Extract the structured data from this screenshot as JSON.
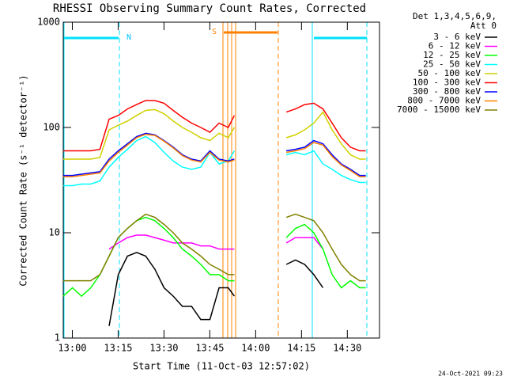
{
  "chart_data": {
    "type": "line",
    "title": "RHESSI Observing Summary Count Rates, Corrected",
    "x_label": "Start Time (11-Oct-03 12:57:02)",
    "y_label": "Corrected Count Rate (s⁻¹ detector⁻¹)",
    "legend_title": [
      "Det 1,3,4,5,6,9,",
      "Att 0"
    ],
    "footer": "24-Oct-2021 09:23",
    "annotations": [
      {
        "text": "N"
      },
      {
        "text": "S"
      }
    ],
    "log_y": true,
    "xlim": [
      0,
      103.5
    ],
    "xticks": [
      {
        "value": 2.97,
        "label": "13:00"
      },
      {
        "value": 17.97,
        "label": "13:15"
      },
      {
        "value": 32.97,
        "label": "13:30"
      },
      {
        "value": 47.97,
        "label": "13:45"
      },
      {
        "value": 62.97,
        "label": "14:00"
      },
      {
        "value": 77.97,
        "label": "14:15"
      },
      {
        "value": 92.97,
        "label": "14:30"
      }
    ],
    "ylim": [
      1,
      1000
    ],
    "yticks": [
      1,
      10,
      100,
      1000
    ],
    "x": [
      0,
      3,
      6,
      9,
      12,
      15,
      18,
      21,
      24,
      27,
      30,
      33,
      36,
      39,
      42,
      45,
      48,
      51,
      54,
      56,
      65,
      73,
      76,
      79,
      82,
      85,
      88,
      91,
      94,
      97,
      99
    ],
    "series": [
      {
        "name": "3 - 6 keV",
        "color": "#000000",
        "values": [
          null,
          null,
          null,
          null,
          null,
          1.3,
          4,
          6,
          6.5,
          6,
          4.5,
          3,
          2.5,
          2,
          2,
          1.5,
          1.5,
          3,
          3,
          2.5,
          null,
          5,
          5.5,
          5,
          4,
          3,
          null,
          null,
          null,
          null,
          null
        ]
      },
      {
        "name": "6 - 12 keV",
        "color": "#ff00ff",
        "values": [
          null,
          null,
          null,
          null,
          null,
          7,
          8,
          9,
          9.5,
          9.5,
          9,
          8.5,
          8,
          8,
          8,
          7.5,
          7.5,
          7,
          7,
          7,
          null,
          8,
          9,
          9,
          9,
          7,
          null,
          null,
          null,
          null,
          null
        ]
      },
      {
        "name": "12 - 25 keV",
        "color": "#00ff00",
        "values": [
          2.5,
          3,
          2.5,
          3,
          4,
          6,
          9,
          11,
          13,
          14,
          13,
          11,
          9,
          7,
          6,
          5,
          4,
          4,
          3.5,
          3.5,
          null,
          9,
          11,
          12,
          10,
          7,
          4,
          3,
          3.5,
          3,
          3
        ]
      },
      {
        "name": "25 - 50 keV",
        "color": "#00ffff",
        "values": [
          28,
          28,
          29,
          29,
          31,
          42,
          52,
          62,
          75,
          82,
          72,
          58,
          48,
          42,
          40,
          42,
          58,
          45,
          48,
          60,
          null,
          55,
          58,
          55,
          60,
          45,
          40,
          35,
          32,
          30,
          30
        ]
      },
      {
        "name": "50 - 100 keV",
        "color": "#d0d000",
        "values": [
          50,
          50,
          50,
          50,
          52,
          95,
          105,
          115,
          130,
          145,
          148,
          135,
          115,
          100,
          90,
          80,
          75,
          88,
          80,
          100,
          null,
          80,
          85,
          95,
          110,
          140,
          95,
          70,
          55,
          50,
          50
        ]
      },
      {
        "name": "100 - 300 keV",
        "color": "#ff0000",
        "values": [
          60,
          60,
          60,
          60,
          62,
          120,
          130,
          150,
          165,
          180,
          180,
          170,
          145,
          125,
          110,
          100,
          90,
          110,
          100,
          130,
          null,
          140,
          150,
          165,
          170,
          150,
          110,
          80,
          65,
          60,
          60
        ]
      },
      {
        "name": "300 - 800 keV",
        "color": "#0000ff",
        "values": [
          35,
          35,
          36,
          37,
          38,
          50,
          60,
          70,
          82,
          88,
          85,
          75,
          65,
          55,
          50,
          48,
          60,
          50,
          48,
          50,
          null,
          60,
          62,
          65,
          75,
          70,
          55,
          45,
          40,
          35,
          35
        ]
      },
      {
        "name": "800 - 7000 keV",
        "color": "#ff8000",
        "values": [
          34,
          34,
          35,
          36,
          37,
          48,
          58,
          68,
          80,
          86,
          84,
          74,
          64,
          54,
          49,
          47,
          58,
          49,
          47,
          49,
          null,
          58,
          60,
          63,
          72,
          68,
          53,
          44,
          39,
          34,
          34
        ]
      },
      {
        "name": "7000 - 15000 keV",
        "color": "#808000",
        "values": [
          3.5,
          3.5,
          3.5,
          3.5,
          4,
          6,
          9,
          11,
          13,
          15,
          14,
          12,
          10,
          8,
          7,
          6,
          5,
          4.5,
          4,
          4,
          null,
          14,
          15,
          14,
          13,
          10,
          7,
          5,
          4,
          3.5,
          3.5
        ]
      }
    ]
  }
}
